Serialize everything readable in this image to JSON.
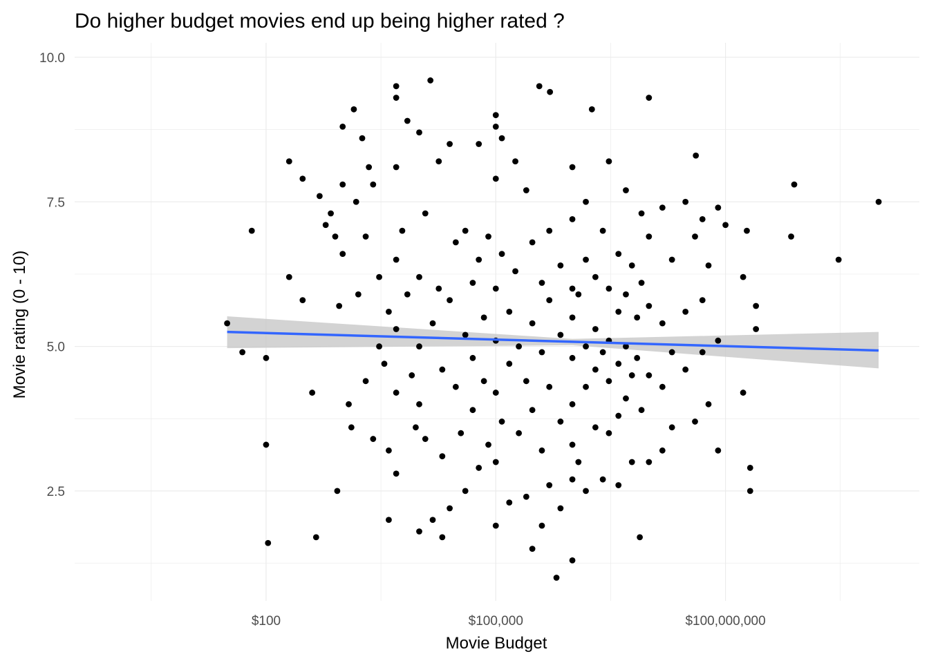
{
  "chart_data": {
    "type": "scatter",
    "title": "Do higher budget movies end up being higher rated ?",
    "xlabel": "Movie Budget",
    "ylabel": "Movie rating (0 - 10)",
    "x_scale": "log10",
    "xlim": [
      0.316,
      34000000000.0
    ],
    "ylim": [
      0.6,
      10.25
    ],
    "x_ticks": [
      {
        "value": 100,
        "label": "$100"
      },
      {
        "value": 100000,
        "label": "$100,000"
      },
      {
        "value": 100000000,
        "label": "$100,000,000"
      }
    ],
    "y_ticks": [
      {
        "value": 2.5,
        "label": "2.5"
      },
      {
        "value": 5.0,
        "label": "5.0"
      },
      {
        "value": 7.5,
        "label": "7.5"
      },
      {
        "value": 10.0,
        "label": "10.0"
      }
    ],
    "grid": true,
    "point_color": "#000000",
    "line_color": "#3366FF",
    "band_color": "#C8C8C8",
    "regression": {
      "x": [
        31,
        1000000,
        10000000000
      ],
      "y": [
        5.25,
        5.08,
        4.93
      ],
      "ci_lower": [
        4.97,
        5.02,
        4.62
      ],
      "ci_upper": [
        5.52,
        5.13,
        5.25
      ]
    },
    "points": [
      [
        31,
        5.4
      ],
      [
        49,
        4.9
      ],
      [
        65,
        7.0
      ],
      [
        100,
        4.8
      ],
      [
        100,
        3.3
      ],
      [
        106,
        1.6
      ],
      [
        200,
        8.2
      ],
      [
        200,
        6.2
      ],
      [
        300,
        7.9
      ],
      [
        300,
        5.8
      ],
      [
        400,
        4.2
      ],
      [
        450,
        1.7
      ],
      [
        850,
        2.5
      ],
      [
        1000,
        8.8
      ],
      [
        1400,
        9.1
      ],
      [
        4000,
        2.0
      ],
      [
        5000,
        9.5
      ],
      [
        5000,
        9.3
      ],
      [
        14000,
        9.6
      ],
      [
        100000,
        9.0
      ],
      [
        100000,
        8.8
      ],
      [
        120000,
        8.6
      ],
      [
        370000,
        9.5
      ],
      [
        510000,
        9.4
      ],
      [
        620000,
        1.0
      ],
      [
        1000000,
        1.3
      ],
      [
        1800000,
        9.1
      ],
      [
        10000000,
        9.3
      ],
      [
        7600000,
        1.7
      ],
      [
        41000000,
        8.3
      ],
      [
        100000000,
        7.1
      ],
      [
        170000000,
        6.2
      ],
      [
        170000000,
        4.2
      ],
      [
        190000000,
        7.0
      ],
      [
        210000000,
        2.9
      ],
      [
        210000000,
        2.5
      ],
      [
        250000000,
        5.7
      ],
      [
        250000000,
        5.3
      ],
      [
        720000000,
        6.9
      ],
      [
        790000000,
        7.8
      ],
      [
        3000000000,
        6.5
      ],
      [
        10000000000,
        7.5
      ],
      [
        500,
        7.6
      ],
      [
        600,
        7.1
      ],
      [
        700,
        7.3
      ],
      [
        800,
        6.9
      ],
      [
        900,
        5.7
      ],
      [
        1000,
        7.8
      ],
      [
        1000,
        6.6
      ],
      [
        1200,
        4.0
      ],
      [
        1300,
        3.6
      ],
      [
        1500,
        7.5
      ],
      [
        1600,
        5.9
      ],
      [
        1800,
        8.6
      ],
      [
        2000,
        6.9
      ],
      [
        2000,
        4.4
      ],
      [
        2200,
        8.1
      ],
      [
        2500,
        7.8
      ],
      [
        2500,
        3.4
      ],
      [
        3000,
        6.2
      ],
      [
        3000,
        5.0
      ],
      [
        3500,
        4.7
      ],
      [
        4000,
        5.6
      ],
      [
        4000,
        3.2
      ],
      [
        5000,
        8.1
      ],
      [
        5000,
        6.5
      ],
      [
        5000,
        5.3
      ],
      [
        5000,
        4.2
      ],
      [
        5000,
        2.8
      ],
      [
        6000,
        7.0
      ],
      [
        7000,
        8.9
      ],
      [
        7000,
        5.9
      ],
      [
        8000,
        4.5
      ],
      [
        9000,
        3.6
      ],
      [
        10000,
        8.7
      ],
      [
        10000,
        6.2
      ],
      [
        10000,
        5.0
      ],
      [
        10000,
        4.0
      ],
      [
        10000,
        1.8
      ],
      [
        12000,
        7.3
      ],
      [
        12000,
        3.4
      ],
      [
        15000,
        5.4
      ],
      [
        15000,
        2.0
      ],
      [
        18000,
        8.2
      ],
      [
        18000,
        6.0
      ],
      [
        20000,
        4.6
      ],
      [
        20000,
        3.1
      ],
      [
        20000,
        1.7
      ],
      [
        25000,
        8.5
      ],
      [
        25000,
        5.8
      ],
      [
        25000,
        2.2
      ],
      [
        30000,
        6.8
      ],
      [
        30000,
        4.3
      ],
      [
        35000,
        3.5
      ],
      [
        40000,
        7.0
      ],
      [
        40000,
        5.2
      ],
      [
        40000,
        2.5
      ],
      [
        50000,
        6.1
      ],
      [
        50000,
        4.8
      ],
      [
        50000,
        3.9
      ],
      [
        60000,
        8.5
      ],
      [
        60000,
        6.5
      ],
      [
        60000,
        2.9
      ],
      [
        70000,
        5.5
      ],
      [
        70000,
        4.4
      ],
      [
        80000,
        3.3
      ],
      [
        80000,
        6.9
      ],
      [
        100000,
        7.9
      ],
      [
        100000,
        6.0
      ],
      [
        100000,
        5.1
      ],
      [
        100000,
        4.2
      ],
      [
        100000,
        3.0
      ],
      [
        100000,
        1.9
      ],
      [
        120000,
        6.6
      ],
      [
        120000,
        3.7
      ],
      [
        150000,
        5.6
      ],
      [
        150000,
        4.7
      ],
      [
        150000,
        2.3
      ],
      [
        180000,
        8.2
      ],
      [
        180000,
        6.3
      ],
      [
        200000,
        5.0
      ],
      [
        200000,
        3.5
      ],
      [
        250000,
        7.7
      ],
      [
        250000,
        4.4
      ],
      [
        250000,
        2.4
      ],
      [
        300000,
        6.8
      ],
      [
        300000,
        5.4
      ],
      [
        300000,
        3.9
      ],
      [
        300000,
        1.5
      ],
      [
        400000,
        6.1
      ],
      [
        400000,
        4.9
      ],
      [
        400000,
        3.2
      ],
      [
        400000,
        1.9
      ],
      [
        500000,
        7.0
      ],
      [
        500000,
        5.8
      ],
      [
        500000,
        4.3
      ],
      [
        500000,
        2.6
      ],
      [
        700000,
        6.4
      ],
      [
        700000,
        5.2
      ],
      [
        700000,
        3.7
      ],
      [
        700000,
        2.2
      ],
      [
        1000000,
        8.1
      ],
      [
        1000000,
        7.2
      ],
      [
        1000000,
        6.0
      ],
      [
        1000000,
        5.5
      ],
      [
        1000000,
        4.8
      ],
      [
        1000000,
        4.0
      ],
      [
        1000000,
        3.3
      ],
      [
        1000000,
        2.7
      ],
      [
        1200000,
        5.9
      ],
      [
        1200000,
        3.0
      ],
      [
        1500000,
        7.5
      ],
      [
        1500000,
        6.5
      ],
      [
        1500000,
        5.0
      ],
      [
        1500000,
        4.3
      ],
      [
        1500000,
        2.5
      ],
      [
        2000000,
        6.2
      ],
      [
        2000000,
        5.3
      ],
      [
        2000000,
        4.6
      ],
      [
        2000000,
        3.6
      ],
      [
        2500000,
        7.0
      ],
      [
        2500000,
        4.9
      ],
      [
        2500000,
        2.7
      ],
      [
        3000000,
        8.2
      ],
      [
        3000000,
        6.0
      ],
      [
        3000000,
        5.1
      ],
      [
        3000000,
        4.4
      ],
      [
        3000000,
        3.5
      ],
      [
        4000000,
        6.6
      ],
      [
        4000000,
        5.6
      ],
      [
        4000000,
        4.7
      ],
      [
        4000000,
        3.8
      ],
      [
        4000000,
        2.6
      ],
      [
        5000000,
        7.7
      ],
      [
        5000000,
        5.9
      ],
      [
        5000000,
        5.0
      ],
      [
        5000000,
        4.1
      ],
      [
        6000000,
        6.4
      ],
      [
        6000000,
        4.5
      ],
      [
        6000000,
        3.0
      ],
      [
        7000000,
        5.5
      ],
      [
        7000000,
        4.8
      ],
      [
        8000000,
        7.3
      ],
      [
        8000000,
        6.1
      ],
      [
        8000000,
        3.9
      ],
      [
        10000000,
        6.9
      ],
      [
        10000000,
        5.7
      ],
      [
        10000000,
        4.5
      ],
      [
        10000000,
        3.0
      ],
      [
        15000000,
        7.4
      ],
      [
        15000000,
        5.4
      ],
      [
        15000000,
        4.3
      ],
      [
        15000000,
        3.2
      ],
      [
        20000000,
        6.5
      ],
      [
        20000000,
        4.9
      ],
      [
        20000000,
        3.6
      ],
      [
        30000000,
        7.5
      ],
      [
        30000000,
        5.6
      ],
      [
        30000000,
        4.6
      ],
      [
        40000000,
        6.9
      ],
      [
        40000000,
        3.7
      ],
      [
        50000000,
        7.2
      ],
      [
        50000000,
        5.8
      ],
      [
        50000000,
        4.9
      ],
      [
        60000000,
        6.4
      ],
      [
        60000000,
        4.0
      ],
      [
        80000000,
        7.4
      ],
      [
        80000000,
        5.1
      ],
      [
        80000000,
        3.2
      ]
    ]
  }
}
